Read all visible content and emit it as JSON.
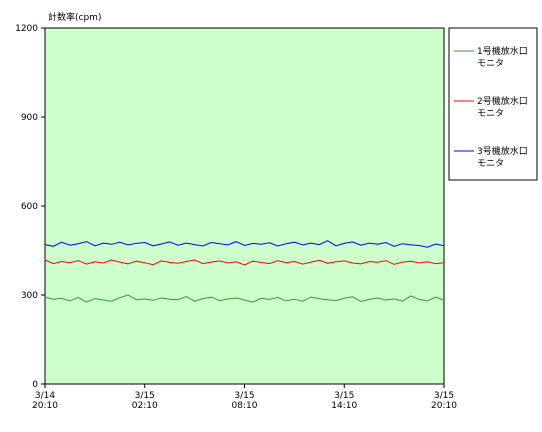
{
  "chart_data": {
    "type": "line",
    "title": "",
    "ylabel": "計数率(cpm)",
    "xlabel": "",
    "ylim": [
      0,
      1200
    ],
    "yticks": [
      0,
      300,
      600,
      900,
      1200
    ],
    "xlim": [
      0,
      24
    ],
    "xticks": [
      {
        "x": 0,
        "line1": "3/14",
        "line2": "20:10"
      },
      {
        "x": 6,
        "line1": "3/15",
        "line2": "02:10"
      },
      {
        "x": 12,
        "line1": "3/15",
        "line2": "08:10"
      },
      {
        "x": 18,
        "line1": "3/15",
        "line2": "14:10"
      },
      {
        "x": 24,
        "line1": "3/15",
        "line2": "20:10"
      }
    ],
    "grid": false,
    "plot_background": "#ccffcc",
    "legend_position": "right",
    "series": [
      {
        "name_line1": "1号機放水口",
        "name_line2": "モニタ",
        "color": "#339933",
        "x": [
          0,
          0.5,
          1,
          1.5,
          2,
          2.5,
          3,
          3.5,
          4,
          4.5,
          5,
          5.5,
          6,
          6.5,
          7,
          7.5,
          8,
          8.5,
          9,
          9.5,
          10,
          10.5,
          11,
          11.5,
          12,
          12.5,
          13,
          13.5,
          14,
          14.5,
          15,
          15.5,
          16,
          16.5,
          17,
          17.5,
          18,
          18.5,
          19,
          19.5,
          20,
          20.5,
          21,
          21.5,
          22,
          22.5,
          23,
          23.5,
          24
        ],
        "values": [
          293,
          285,
          289,
          280,
          292,
          276,
          288,
          283,
          279,
          291,
          300,
          284,
          287,
          282,
          290,
          286,
          284,
          295,
          279,
          288,
          293,
          281,
          287,
          290,
          283,
          276,
          289,
          285,
          292,
          280,
          286,
          279,
          293,
          288,
          284,
          281,
          289,
          294,
          278,
          285,
          290,
          283,
          287,
          279,
          297,
          285,
          280,
          293,
          282
        ]
      },
      {
        "name_line1": "2号機放水口",
        "name_line2": "モニタ",
        "color": "#ff0000",
        "x": [
          0,
          0.5,
          1,
          1.5,
          2,
          2.5,
          3,
          3.5,
          4,
          4.5,
          5,
          5.5,
          6,
          6.5,
          7,
          7.5,
          8,
          8.5,
          9,
          9.5,
          10,
          10.5,
          11,
          11.5,
          12,
          12.5,
          13,
          13.5,
          14,
          14.5,
          15,
          15.5,
          16,
          16.5,
          17,
          17.5,
          18,
          18.5,
          19,
          19.5,
          20,
          20.5,
          21,
          21.5,
          22,
          22.5,
          23,
          23.5,
          24
        ],
        "values": [
          418,
          406,
          413,
          409,
          416,
          404,
          412,
          408,
          418,
          411,
          405,
          414,
          409,
          402,
          415,
          410,
          407,
          413,
          418,
          406,
          411,
          415,
          408,
          412,
          401,
          414,
          410,
          406,
          416,
          409,
          413,
          404,
          411,
          417,
          407,
          412,
          415,
          408,
          405,
          413,
          410,
          416,
          403,
          411,
          414,
          408,
          412,
          406,
          409
        ]
      },
      {
        "name_line1": "3号機放水口",
        "name_line2": "モニタ",
        "color": "#0000ff",
        "x": [
          0,
          0.5,
          1,
          1.5,
          2,
          2.5,
          3,
          3.5,
          4,
          4.5,
          5,
          5.5,
          6,
          6.5,
          7,
          7.5,
          8,
          8.5,
          9,
          9.5,
          10,
          10.5,
          11,
          11.5,
          12,
          12.5,
          13,
          13.5,
          14,
          14.5,
          15,
          15.5,
          16,
          16.5,
          17,
          17.5,
          18,
          18.5,
          19,
          19.5,
          20,
          20.5,
          21,
          21.5,
          22,
          22.5,
          23,
          23.5,
          24
        ],
        "values": [
          470,
          464,
          478,
          468,
          473,
          480,
          466,
          475,
          471,
          478,
          469,
          474,
          477,
          466,
          472,
          479,
          468,
          475,
          470,
          465,
          477,
          473,
          469,
          480,
          467,
          474,
          471,
          476,
          465,
          473,
          478,
          469,
          475,
          470,
          483,
          466,
          474,
          479,
          468,
          475,
          471,
          477,
          464,
          473,
          469,
          467,
          461,
          472,
          466
        ]
      }
    ]
  }
}
